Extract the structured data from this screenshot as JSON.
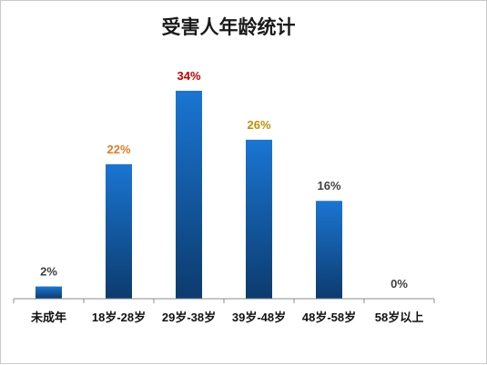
{
  "chart_data": {
    "type": "bar",
    "title": "受害人年龄统计",
    "categories": [
      "未成年",
      "18岁-28岁",
      "29岁-38岁",
      "39岁-48岁",
      "48岁-58岁",
      "58岁以上"
    ],
    "values": [
      2,
      22,
      34,
      26,
      16,
      0
    ],
    "value_labels": [
      "2%",
      "22%",
      "34%",
      "26%",
      "16%",
      "0%"
    ],
    "label_colors": [
      "#404040",
      "#e07b24",
      "#c00000",
      "#bf9000",
      "#404040",
      "#404040"
    ],
    "bar_color_top": "#1a75d2",
    "bar_color_bottom": "#0c3b6e",
    "ylim": [
      0,
      34
    ],
    "grid": false,
    "legend": "none"
  }
}
